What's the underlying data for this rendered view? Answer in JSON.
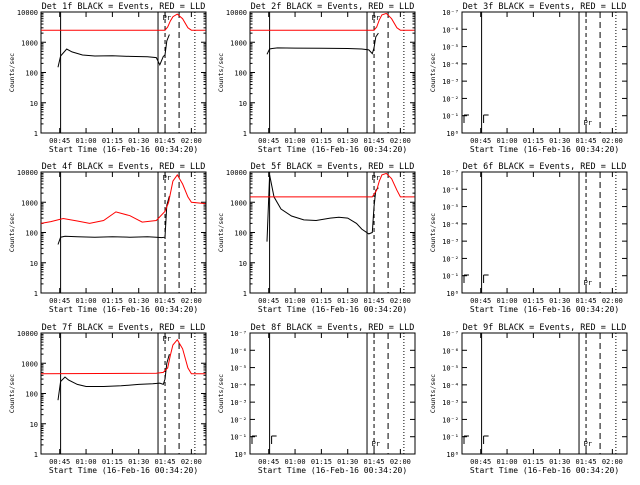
{
  "chart_data": [
    {
      "type": "line",
      "scale": "log",
      "ylim": [
        1,
        10000
      ],
      "title": "Det 1f BLACK = Events, RED = LLD",
      "xlabel": "Start Time (16-Feb-16 00:34:20)",
      "ylabel": "Counts/sec",
      "x_ticks": [
        "00:45",
        "01:00",
        "01:15",
        "01:30",
        "01:45",
        "02:00"
      ],
      "y_ticks": [
        "1",
        "10",
        "100",
        "1000",
        "10000"
      ],
      "annotation": "Pr",
      "series": [
        {
          "color": "#000000",
          "x": [
            "00:44",
            "00:45:30",
            "00:49",
            "00:52",
            "00:58",
            "01:05",
            "01:15",
            "01:25",
            "01:35",
            "01:40",
            "01:42",
            "01:44",
            "01:45",
            "01:46",
            "01:47:30"
          ],
          "values": [
            150,
            350,
            600,
            480,
            380,
            350,
            360,
            340,
            330,
            310,
            180,
            340,
            380,
            1100,
            1800
          ]
        },
        {
          "color": "#ff0000",
          "x": [
            "00:34:20",
            "01:45",
            "01:46:30",
            "01:48",
            "01:49:30",
            "01:52",
            "01:55",
            "01:58",
            "02:00",
            "02:08"
          ],
          "values": [
            2500,
            2500,
            3200,
            5000,
            7000,
            8500,
            6000,
            3000,
            2500,
            2500
          ]
        }
      ]
    },
    {
      "type": "line",
      "scale": "log",
      "ylim": [
        1,
        10000
      ],
      "title": "Det 2f BLACK = Events, RED = LLD",
      "xlabel": "Start Time (16-Feb-16 00:34:20)",
      "ylabel": "Counts/sec",
      "x_ticks": [
        "00:45",
        "01:00",
        "01:15",
        "01:30",
        "01:45",
        "02:00"
      ],
      "y_ticks": [
        "1",
        "10",
        "100",
        "1000",
        "10000"
      ],
      "annotation": "Pr",
      "series": [
        {
          "color": "#000000",
          "x": [
            "00:44",
            "00:45:30",
            "00:47",
            "00:50",
            "01:00",
            "01:15",
            "01:30",
            "01:38",
            "01:42",
            "01:44",
            "01:45",
            "01:46",
            "01:47:30"
          ],
          "values": [
            400,
            600,
            620,
            650,
            640,
            630,
            620,
            600,
            560,
            420,
            650,
            1500,
            2000
          ]
        },
        {
          "color": "#ff0000",
          "x": [
            "00:34:20",
            "01:40",
            "01:45",
            "01:46:30",
            "01:48",
            "01:49:30",
            "01:52",
            "01:55",
            "01:58",
            "02:00",
            "02:08"
          ],
          "values": [
            2500,
            2500,
            2500,
            3200,
            5500,
            8000,
            9000,
            6000,
            3000,
            2500,
            2500
          ]
        }
      ]
    },
    {
      "type": "line",
      "scale": "log",
      "ylim": [
        1,
        1e-07
      ],
      "title": "Det 3f BLACK = Events, RED = LLD",
      "xlabel": "Start Time (16-Feb-16 00:34:20)",
      "ylabel": "Counts/sec",
      "x_ticks": [
        "00:45",
        "01:00",
        "01:15",
        "01:30",
        "01:45",
        "02:00"
      ],
      "y_ticks": [
        "10⁰",
        "10⁻¹",
        "10⁻²",
        "10⁻³",
        "10⁻⁴",
        "10⁻⁵",
        "10⁻⁶",
        "10⁻⁷"
      ],
      "annotation": "Pr",
      "series": []
    },
    {
      "type": "line",
      "scale": "log",
      "ylim": [
        1,
        10000
      ],
      "title": "Det 4f BLACK = Events, RED = LLD",
      "xlabel": "Start Time (16-Feb-16 00:34:20)",
      "ylabel": "Counts/sec",
      "x_ticks": [
        "00:45",
        "01:00",
        "01:15",
        "01:30",
        "01:45",
        "02:00"
      ],
      "y_ticks": [
        "1",
        "10",
        "100",
        "1000",
        "10000"
      ],
      "annotation": "Pr",
      "series": [
        {
          "color": "#000000",
          "x": [
            "00:44",
            "00:45:30",
            "00:48",
            "00:55",
            "01:05",
            "01:15",
            "01:25",
            "01:35",
            "01:40",
            "01:43",
            "01:45",
            "01:46",
            "01:47:30"
          ],
          "values": [
            40,
            70,
            75,
            72,
            70,
            72,
            70,
            72,
            70,
            68,
            70,
            800,
            1600
          ]
        },
        {
          "color": "#ff0000",
          "x": [
            "00:34:20",
            "00:40",
            "00:47",
            "00:55",
            "01:02",
            "01:10",
            "01:17",
            "01:25",
            "01:32",
            "01:40",
            "01:45",
            "01:47",
            "01:49:30",
            "01:52",
            "01:55",
            "01:58",
            "02:00",
            "02:08"
          ],
          "values": [
            200,
            230,
            290,
            240,
            200,
            250,
            480,
            360,
            220,
            250,
            500,
            1000,
            5000,
            8000,
            4000,
            1500,
            1000,
            900
          ]
        }
      ]
    },
    {
      "type": "line",
      "scale": "log",
      "ylim": [
        1,
        10000
      ],
      "title": "Det 5f BLACK = Events, RED = LLD",
      "xlabel": "Start Time (16-Feb-16 00:34:20)",
      "ylabel": "Counts/sec",
      "x_ticks": [
        "00:45",
        "01:00",
        "01:15",
        "01:30",
        "01:45",
        "02:00"
      ],
      "y_ticks": [
        "1",
        "10",
        "100",
        "1000",
        "10000"
      ],
      "annotation": "Pr",
      "series": [
        {
          "color": "#000000",
          "x": [
            "00:44",
            "00:45:30",
            "00:48",
            "00:52",
            "00:58",
            "01:05",
            "01:12",
            "01:20",
            "01:25",
            "01:30",
            "01:35",
            "01:38",
            "01:42",
            "01:44",
            "01:45",
            "01:46",
            "01:47:30"
          ],
          "values": [
            50,
            8000,
            1500,
            600,
            350,
            260,
            250,
            300,
            320,
            300,
            200,
            130,
            90,
            100,
            700,
            2500,
            3000
          ]
        },
        {
          "color": "#ff0000",
          "x": [
            "00:34:20",
            "01:40",
            "01:44",
            "01:46:30",
            "01:48",
            "01:49:30",
            "01:52",
            "01:55",
            "01:58",
            "02:00",
            "02:08"
          ],
          "values": [
            1500,
            1500,
            1500,
            2500,
            5000,
            8000,
            9000,
            6000,
            2500,
            1500,
            1500
          ]
        }
      ]
    },
    {
      "type": "line",
      "scale": "log",
      "ylim": [
        1,
        1e-07
      ],
      "title": "Det 6f BLACK = Events, RED = LLD",
      "xlabel": "Start Time (16-Feb-16 00:34:20)",
      "ylabel": "Counts/sec",
      "x_ticks": [
        "00:45",
        "01:00",
        "01:15",
        "01:30",
        "01:45",
        "02:00"
      ],
      "y_ticks": [
        "10⁰",
        "10⁻¹",
        "10⁻²",
        "10⁻³",
        "10⁻⁴",
        "10⁻⁵",
        "10⁻⁶",
        "10⁻⁷"
      ],
      "annotation": "Pr",
      "series": []
    },
    {
      "type": "line",
      "scale": "log",
      "ylim": [
        1,
        10000
      ],
      "title": "Det 7f BLACK = Events, RED = LLD",
      "xlabel": "Start Time (16-Feb-16 00:34:20)",
      "ylabel": "Counts/sec",
      "x_ticks": [
        "00:45",
        "01:00",
        "01:15",
        "01:30",
        "01:45",
        "02:00"
      ],
      "y_ticks": [
        "1",
        "10",
        "100",
        "1000",
        "10000"
      ],
      "annotation": "Pr",
      "series": [
        {
          "color": "#000000",
          "x": [
            "00:44",
            "00:45:30",
            "00:48",
            "00:50",
            "00:55",
            "01:00",
            "01:10",
            "01:20",
            "01:30",
            "01:38",
            "01:42",
            "01:44",
            "01:45",
            "01:46",
            "01:47:30"
          ],
          "values": [
            60,
            250,
            350,
            280,
            200,
            170,
            170,
            180,
            200,
            210,
            220,
            200,
            300,
            1000,
            2000
          ]
        },
        {
          "color": "#ff0000",
          "x": [
            "00:34:20",
            "01:40",
            "01:44",
            "01:46:30",
            "01:48",
            "01:49:30",
            "01:52",
            "01:55",
            "01:58",
            "02:00",
            "02:08"
          ],
          "values": [
            450,
            470,
            500,
            700,
            1800,
            4000,
            6000,
            3000,
            700,
            450,
            450
          ]
        }
      ]
    },
    {
      "type": "line",
      "scale": "log",
      "ylim": [
        1,
        1e-07
      ],
      "title": "Det 8f BLACK = Events, RED = LLD",
      "xlabel": "Start Time (16-Feb-16 00:34:20)",
      "ylabel": "Counts/sec",
      "x_ticks": [
        "00:45",
        "01:00",
        "01:15",
        "01:30",
        "01:45",
        "02:00"
      ],
      "y_ticks": [
        "10⁰",
        "10⁻¹",
        "10⁻²",
        "10⁻³",
        "10⁻⁴",
        "10⁻⁵",
        "10⁻⁶",
        "10⁻⁷"
      ],
      "annotation": "Pr",
      "series": []
    },
    {
      "type": "line",
      "scale": "log",
      "ylim": [
        1,
        1e-07
      ],
      "title": "Det 9f BLACK = Events, RED = LLD",
      "xlabel": "Start Time (16-Feb-16 00:34:20)",
      "ylabel": "Counts/sec",
      "x_ticks": [
        "00:45",
        "01:00",
        "01:15",
        "01:30",
        "01:45",
        "02:00"
      ],
      "y_ticks": [
        "10⁰",
        "10⁻¹",
        "10⁻²",
        "10⁻³",
        "10⁻⁴",
        "10⁻⁵",
        "10⁻⁶",
        "10⁻⁷"
      ],
      "annotation": "Pr",
      "series": []
    }
  ]
}
